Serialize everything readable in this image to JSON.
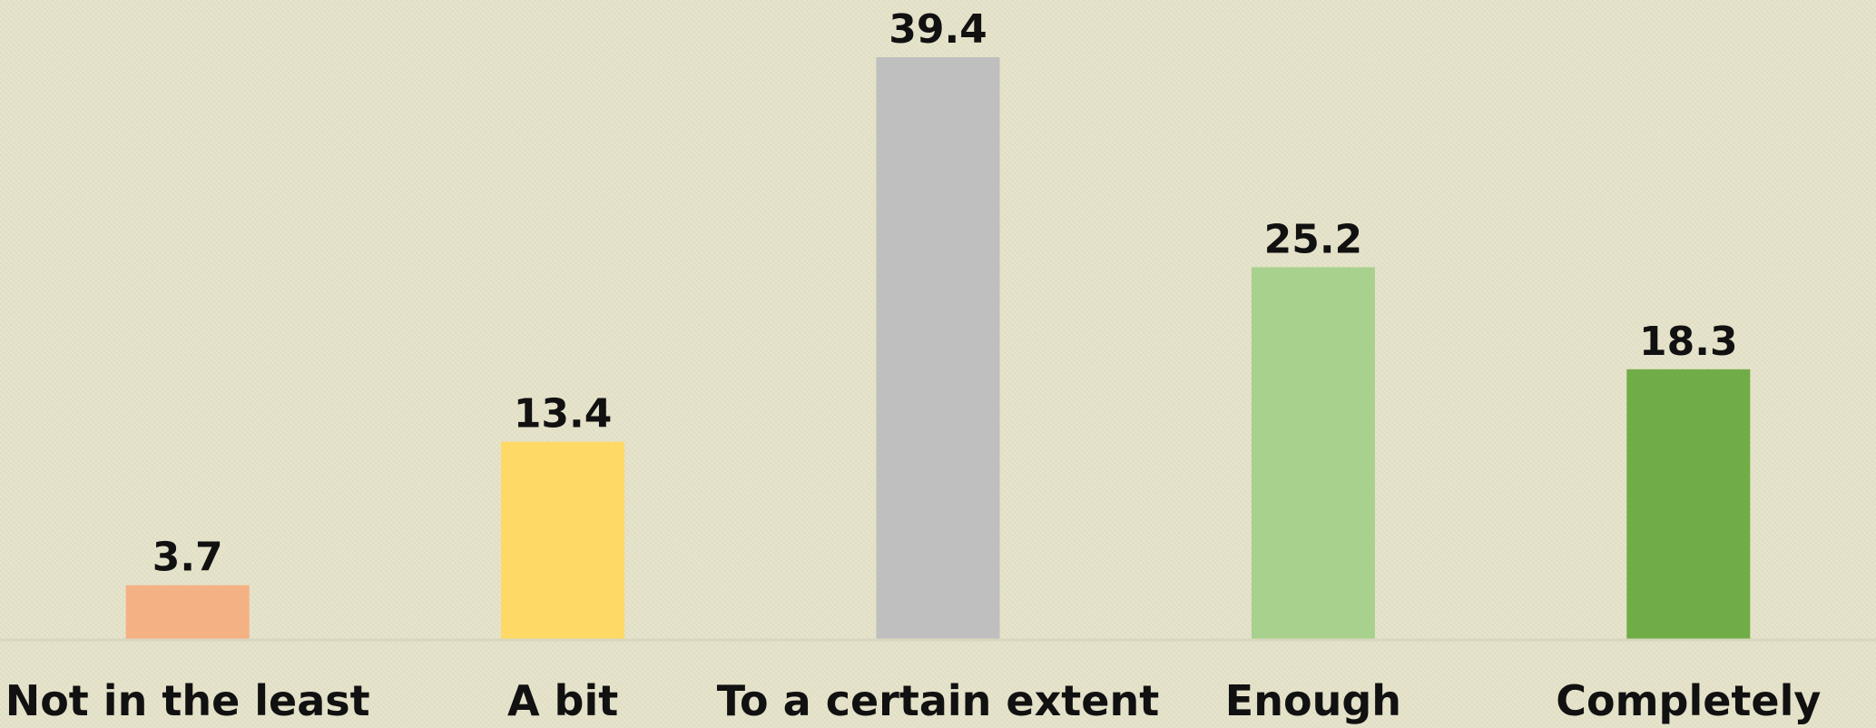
{
  "chart_data": {
    "type": "bar",
    "categories": [
      "Not in the least",
      "A bit",
      "To a certain extent",
      "Enough",
      "Completely"
    ],
    "values": [
      3.7,
      13.4,
      39.4,
      25.2,
      18.3
    ],
    "colors": [
      "#f4b183",
      "#ffd966",
      "#bfbfbf",
      "#a9d18e",
      "#70ad47"
    ],
    "title": "",
    "xlabel": "",
    "ylabel": "",
    "ylim": [
      0,
      39.4
    ],
    "grid": false,
    "legend": "none",
    "axis_line_color": "#d9d6bf"
  }
}
